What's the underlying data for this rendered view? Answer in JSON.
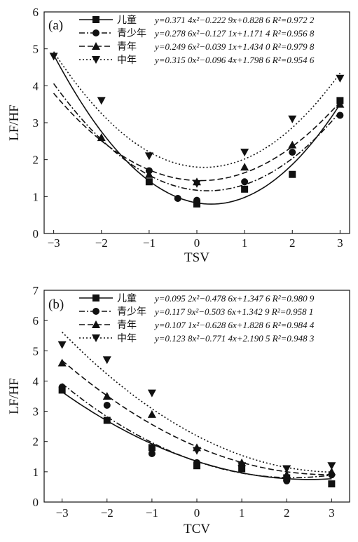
{
  "figure": {
    "panels": [
      {
        "label": "(a)",
        "xlabel": "TSV",
        "ylabel": "LF/HF"
      },
      {
        "label": "(b)",
        "xlabel": "TCV",
        "ylabel": "LF/HF"
      }
    ]
  },
  "chart_data": [
    {
      "type": "scatter",
      "panel": "(a)",
      "xlabel": "TSV",
      "ylabel": "LF/HF",
      "xlim": [
        -3.2,
        3.2
      ],
      "ylim": [
        0,
        6
      ],
      "xticks": [
        -3,
        -2,
        -1,
        0,
        1,
        2,
        3
      ],
      "yticks": [
        0,
        1,
        2,
        3,
        4,
        5,
        6
      ],
      "xtick_labels": [
        "−3",
        "−2",
        "−1",
        "0",
        "1",
        "2",
        "3"
      ],
      "ytick_labels": [
        "0",
        "1",
        "2",
        "3",
        "4",
        "5",
        "6"
      ],
      "grid": false,
      "legend_position": "top-right",
      "series": [
        {
          "name": "儿童",
          "marker": "square",
          "linestyle": "solid",
          "equation": "y=0.371 4x²−0.222 9x+0.828 6 R²=0.972 2",
          "coef": [
            0.3714,
            -0.2229,
            0.8286
          ],
          "x": [
            -1,
            0,
            1,
            2,
            3
          ],
          "y": [
            1.4,
            0.8,
            1.2,
            1.6,
            3.6
          ]
        },
        {
          "name": "青少年",
          "marker": "circle",
          "linestyle": "dashdot",
          "equation": "y=0.278 6x²−0.127 1x+1.171 4 R²=0.956 8",
          "coef": [
            0.2786,
            -0.1271,
            1.1714
          ],
          "x": [
            -1,
            -0.4,
            0,
            1,
            2,
            3
          ],
          "y": [
            1.7,
            0.95,
            0.9,
            1.4,
            2.2,
            3.2
          ]
        },
        {
          "name": "青年",
          "marker": "triangle-up",
          "linestyle": "dashed",
          "equation": "y=0.249 6x²−0.039 1x+1.434 0 R²=0.979 8",
          "coef": [
            0.2496,
            -0.0391,
            1.434
          ],
          "x": [
            -2,
            -1,
            0,
            1,
            2,
            3
          ],
          "y": [
            2.6,
            1.6,
            1.4,
            1.8,
            2.4,
            3.5
          ]
        },
        {
          "name": "中年",
          "marker": "triangle-down",
          "linestyle": "dotted",
          "equation": "y=0.315 0x²−0.096 4x+1.798 6 R²=0.954 6",
          "coef": [
            0.315,
            -0.0964,
            1.7986
          ],
          "x": [
            -3,
            -2,
            -1,
            0,
            1,
            2,
            3
          ],
          "y": [
            4.8,
            3.6,
            2.1,
            1.35,
            2.2,
            3.1,
            4.2
          ]
        }
      ]
    },
    {
      "type": "scatter",
      "panel": "(b)",
      "xlabel": "TCV",
      "ylabel": "LF/HF",
      "xlim": [
        -3.4,
        3.4
      ],
      "ylim": [
        0,
        7
      ],
      "xticks": [
        -3,
        -2,
        -1,
        0,
        1,
        2,
        3
      ],
      "yticks": [
        0,
        1,
        2,
        3,
        4,
        5,
        6,
        7
      ],
      "xtick_labels": [
        "−3",
        "−2",
        "−1",
        "0",
        "1",
        "2",
        "3"
      ],
      "ytick_labels": [
        "0",
        "1",
        "2",
        "3",
        "4",
        "5",
        "6",
        "7"
      ],
      "grid": false,
      "legend_position": "top-right",
      "series": [
        {
          "name": "儿童",
          "marker": "square",
          "linestyle": "solid",
          "equation": "y=0.095 2x²−0.478 6x+1.347 6 R²=0.980 9",
          "coef": [
            0.0952,
            -0.4786,
            1.3476
          ],
          "x": [
            -3,
            -2,
            -1,
            0,
            1,
            2,
            3
          ],
          "y": [
            3.7,
            2.7,
            1.8,
            1.2,
            1.1,
            0.8,
            0.6
          ]
        },
        {
          "name": "青少年",
          "marker": "circle",
          "linestyle": "dashdot",
          "equation": "y=0.117 9x²−0.503 6x+1.342 9 R²=0.958 1",
          "coef": [
            0.1179,
            -0.5036,
            1.3429
          ],
          "x": [
            -3,
            -2,
            -1,
            0,
            1,
            2,
            3
          ],
          "y": [
            3.8,
            3.2,
            1.6,
            1.3,
            1.2,
            0.7,
            0.9
          ]
        },
        {
          "name": "青年",
          "marker": "triangle-up",
          "linestyle": "dashed",
          "equation": "y=0.107 1x²−0.628 6x+1.828 6 R²=0.984 4",
          "coef": [
            0.1071,
            -0.6286,
            1.8286
          ],
          "x": [
            -3,
            -2,
            -1,
            0,
            1,
            2,
            3
          ],
          "y": [
            4.6,
            3.5,
            2.9,
            1.8,
            1.3,
            0.9,
            1.0
          ]
        },
        {
          "name": "中年",
          "marker": "triangle-down",
          "linestyle": "dotted",
          "equation": "y=0.123 8x²−0.771 4x+2.190 5 R²=0.948 3",
          "coef": [
            0.1238,
            -0.7714,
            2.1905
          ],
          "x": [
            -3,
            -2,
            -1,
            0,
            1,
            2,
            3
          ],
          "y": [
            5.2,
            4.7,
            3.6,
            1.7,
            1.2,
            1.1,
            1.2
          ]
        }
      ]
    }
  ]
}
